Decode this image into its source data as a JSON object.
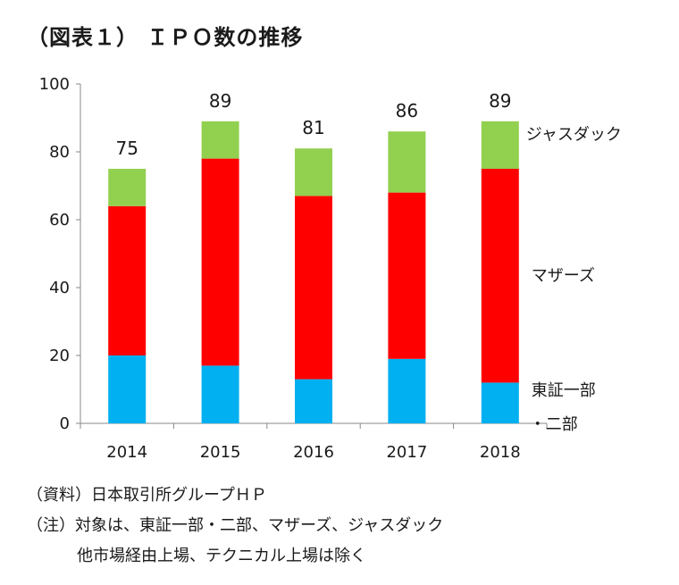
{
  "title": "（図表１） ＩＰＯ数の推移",
  "chart_data": {
    "type": "bar",
    "stacked": true,
    "categories": [
      "2014",
      "2015",
      "2016",
      "2017",
      "2018"
    ],
    "series": [
      {
        "name": "東証一部・二部",
        "values": [
          20,
          17,
          13,
          19,
          12
        ],
        "color": "#00b0f0"
      },
      {
        "name": "マザーズ",
        "values": [
          44,
          61,
          54,
          49,
          63
        ],
        "color": "#ff0000"
      },
      {
        "name": "ジャスダック",
        "values": [
          11,
          11,
          14,
          18,
          14
        ],
        "color": "#92d050"
      }
    ],
    "totals": [
      75,
      89,
      81,
      86,
      89
    ],
    "ylim": [
      0,
      100
    ],
    "yticks": [
      0,
      20,
      40,
      60,
      80,
      100
    ],
    "grid": false,
    "legend": "right-inline"
  },
  "notes": {
    "source": "（資料）日本取引所グループＨＰ",
    "note_line1": "（注）対象は、東証一部・二部、マザーズ、ジャスダック",
    "note_line2": "他市場経由上場、テクニカル上場は除く"
  }
}
